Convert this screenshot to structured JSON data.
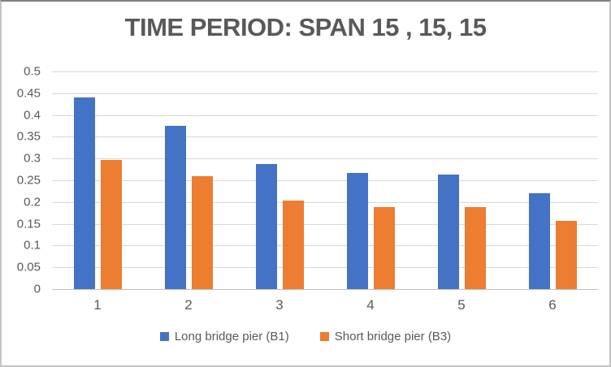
{
  "chart_data": {
    "type": "bar",
    "title": "TIME PERIOD: SPAN 15 , 15, 15",
    "categories": [
      "1",
      "2",
      "3",
      "4",
      "5",
      "6"
    ],
    "series": [
      {
        "name": "Long bridge pier (B1)",
        "color": "#4472C4",
        "values": [
          0.44,
          0.375,
          0.287,
          0.266,
          0.264,
          0.22
        ]
      },
      {
        "name": "Short bridge pier (B3)",
        "color": "#ED7D31",
        "values": [
          0.296,
          0.26,
          0.203,
          0.188,
          0.189,
          0.156
        ]
      }
    ],
    "xlabel": "",
    "ylabel": "",
    "ylim": [
      0,
      0.5
    ],
    "ytick_step": 0.05,
    "yticks": [
      "0.5",
      "0.45",
      "0.4",
      "0.35",
      "0.3",
      "0.25",
      "0.2",
      "0.15",
      "0.1",
      "0.05",
      "0"
    ],
    "grid": true,
    "legend_position": "bottom"
  },
  "colors": {
    "title_text": "#595959",
    "axis_text": "#595959",
    "gridline": "#D9D9D9",
    "series_long_pier": "#4472C4",
    "series_short_pier": "#ED7D31"
  }
}
